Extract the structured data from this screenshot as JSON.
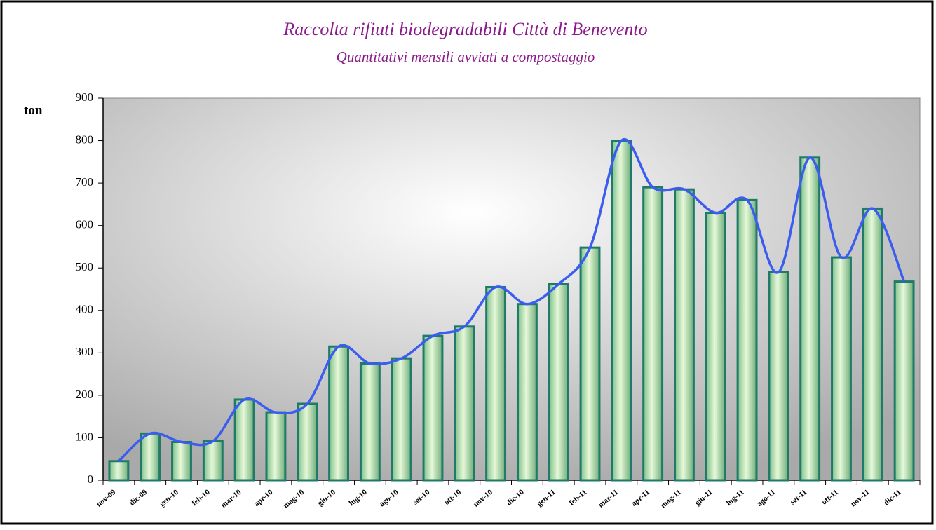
{
  "chart_data": {
    "type": "bar",
    "title": "Raccolta rifiuti biodegradabili Città di Benevento",
    "subtitle": "Quantitativi mensili avviati a compostaggio",
    "y_label": "ton",
    "categories": [
      "nov-09",
      "dic-09",
      "gen-10",
      "feb-10",
      "mar-10",
      "apr-10",
      "mag-10",
      "giu-10",
      "lug-10",
      "ago-10",
      "set-10",
      "ott-10",
      "nov-10",
      "dic-10",
      "gen-11",
      "feb-11",
      "mar-11",
      "apr-11",
      "mag-11",
      "giu-11",
      "lug-11",
      "ago-11",
      "set-11",
      "ott-11",
      "nov-11",
      "dic-11"
    ],
    "values": [
      45,
      110,
      90,
      92,
      190,
      160,
      180,
      315,
      275,
      287,
      340,
      362,
      455,
      415,
      462,
      548,
      800,
      690,
      685,
      630,
      660,
      490,
      760,
      525,
      640,
      468
    ],
    "color": "#a8dca8",
    "line_color": "#3a5cf0",
    "ylim": [
      0,
      900
    ],
    "yticks": [
      0,
      100,
      200,
      300,
      400,
      500,
      600,
      700,
      800,
      900
    ]
  }
}
